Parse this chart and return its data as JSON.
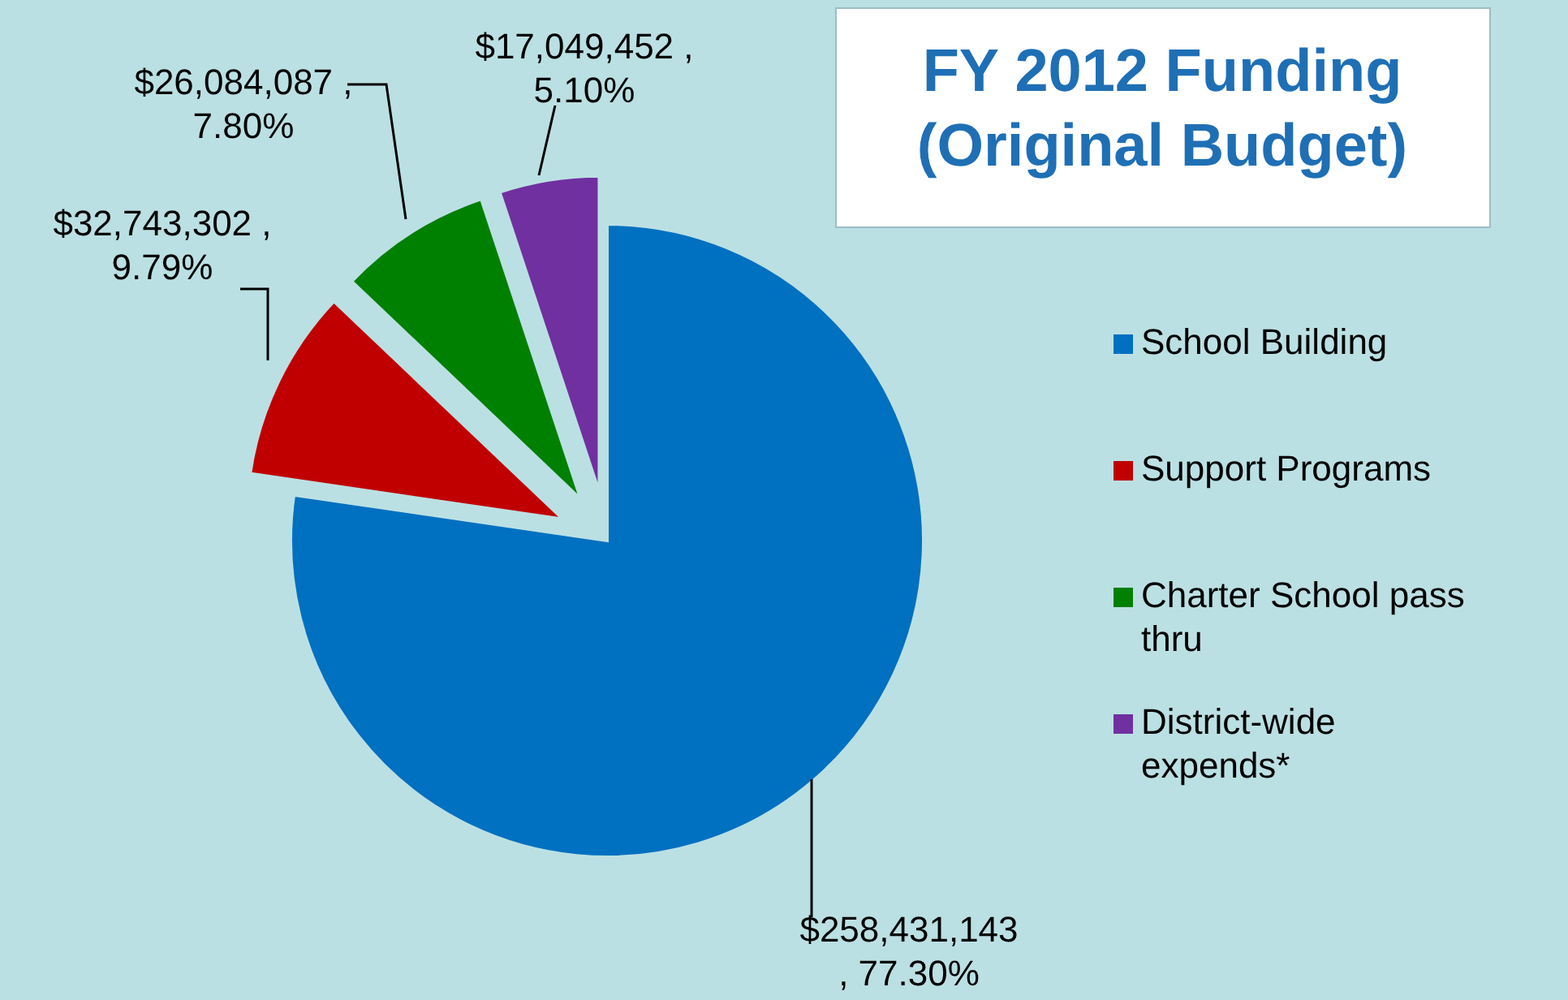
{
  "chart_data": {
    "type": "pie",
    "title": "FY 2012 Funding (Original Budget)",
    "categories": [
      "School Building",
      "Support Programs",
      "Charter School pass thru",
      "District-wide expends*"
    ],
    "values": [
      258431143,
      32743302,
      26084087,
      17049452
    ],
    "colors": [
      "#0070c0",
      "#c00000",
      "#008000",
      "#7030a0"
    ],
    "value_labels": [
      "$258,431,143 , 77.30%",
      "$32,743,302 , 9.79%",
      "$26,084,087 , 7.80%",
      "$17,049,452 , 5.10%"
    ],
    "legend": "right"
  }
}
